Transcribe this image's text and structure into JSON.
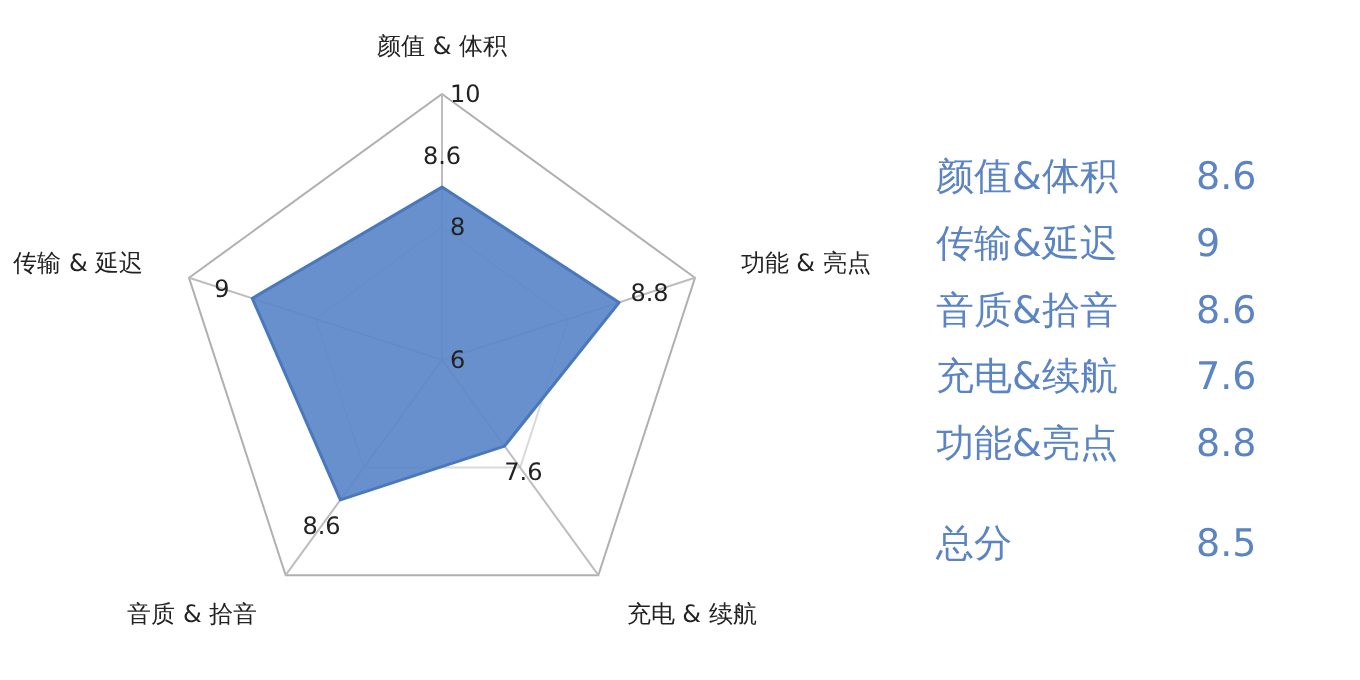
{
  "chart_data": [
    {
      "type": "radar",
      "categories": [
        "颜值 & 体积",
        "功能 & 亮点",
        "充电 & 续航",
        "音质 & 拾音",
        "传输 & 延迟"
      ],
      "series": [
        {
          "color": "#5b87c8",
          "values": [
            8.6,
            8.8,
            7.6,
            8.6,
            9
          ]
        }
      ],
      "ylim": [
        6,
        10
      ],
      "yticks": [
        6,
        8,
        10
      ],
      "grid": true,
      "data_labels": true
    },
    {
      "type": "other",
      "categories": [
        "颜值&体积",
        "传输&延迟",
        "音质&拾音",
        "充电&续航",
        "功能&亮点",
        "总分"
      ],
      "values": [
        8.6,
        9,
        8.6,
        7.6,
        8.8,
        8.5
      ],
      "data_labels": true,
      "colors": [
        "#5b84c4",
        "#5b84c4",
        "#5b84c4",
        "#5b84c4",
        "#5b84c4",
        "#5b84c4"
      ]
    }
  ]
}
